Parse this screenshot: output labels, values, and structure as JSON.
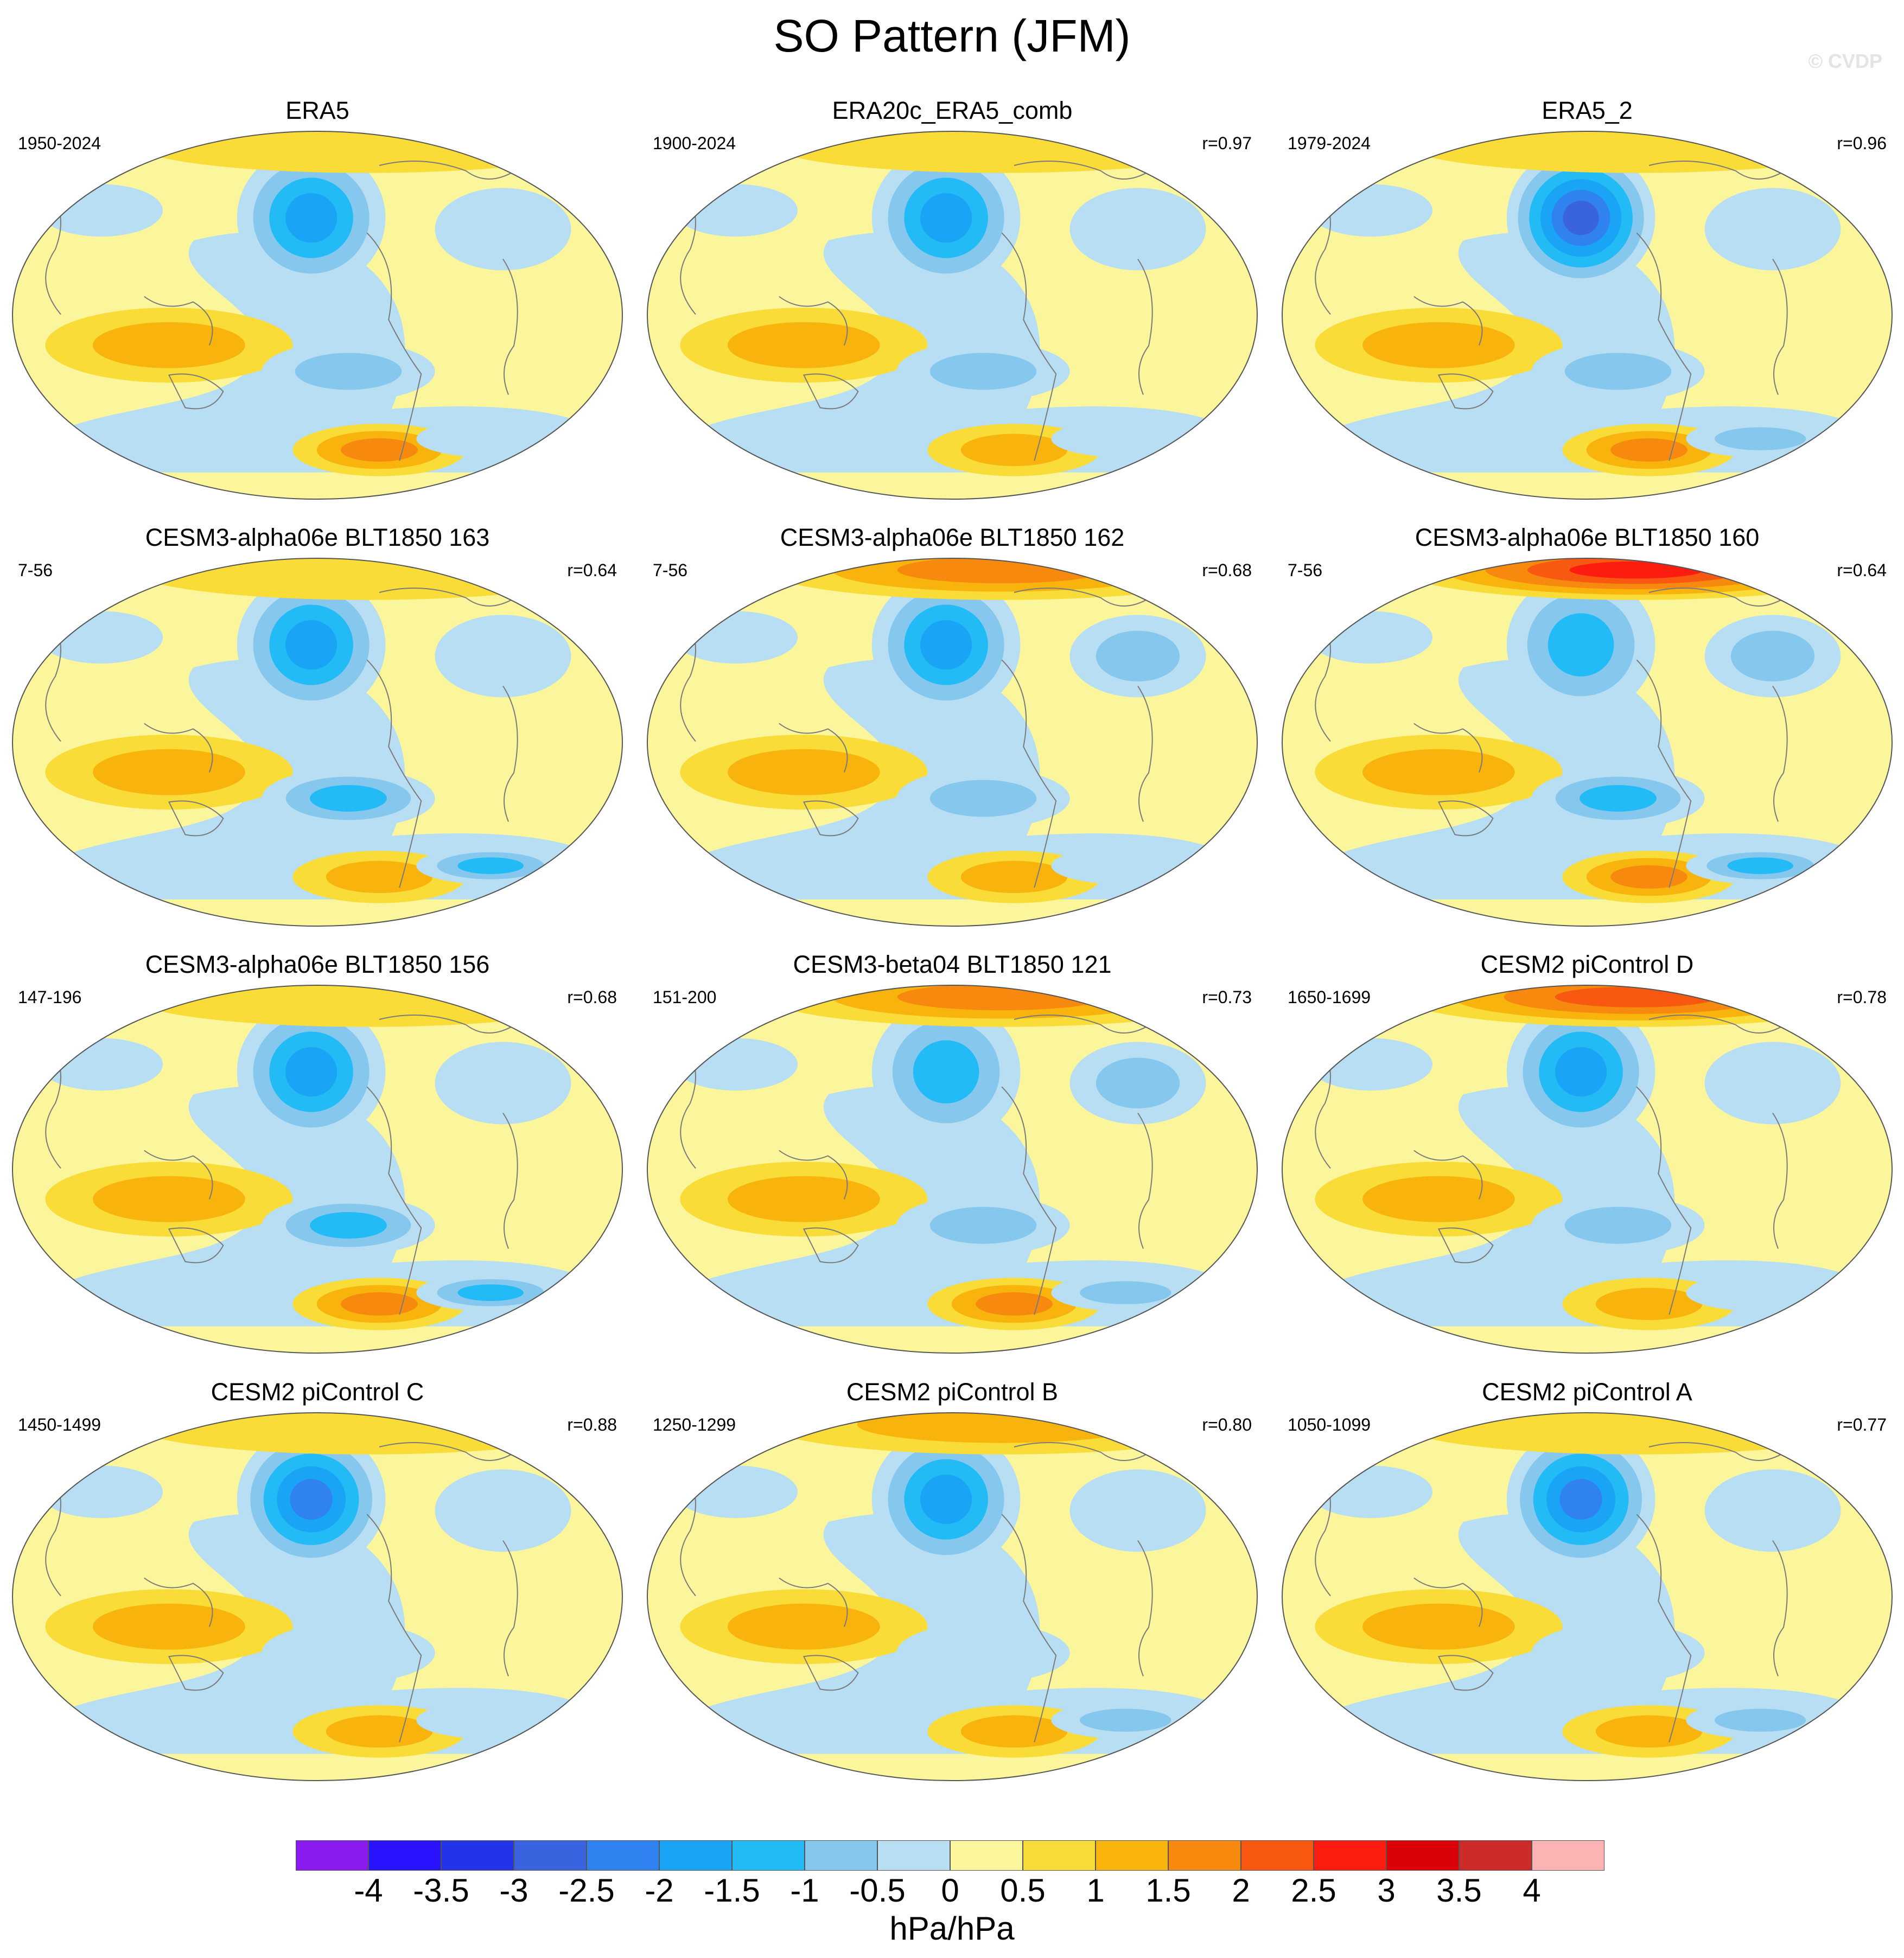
{
  "figure": {
    "title": "SO Pattern (JFM)",
    "watermark": "© CVDP"
  },
  "panels": [
    {
      "title": "ERA5",
      "years": "1950-2024",
      "corr": "",
      "pattern": {
        "aleut": -2.0,
        "arctic": 0.7,
        "atlantic": -0.8,
        "maritime": 1.0,
        "tropEP": -1.0,
        "sePac": 1.6,
        "so": -0.8,
        "na": -0.6
      }
    },
    {
      "title": "ERA20c_ERA5_comb",
      "years": "1900-2024",
      "corr": "r=0.97",
      "pattern": {
        "aleut": -2.0,
        "arctic": 0.7,
        "atlantic": -0.8,
        "maritime": 1.0,
        "tropEP": -1.0,
        "sePac": 1.4,
        "so": -0.8,
        "na": -0.6
      }
    },
    {
      "title": "ERA5_2",
      "years": "1979-2024",
      "corr": "r=0.96",
      "pattern": {
        "aleut": -3.0,
        "arctic": 0.8,
        "atlantic": -0.8,
        "maritime": 1.0,
        "tropEP": -1.0,
        "sePac": 1.8,
        "so": -1.2,
        "na": -0.6
      }
    },
    {
      "title": "CESM3-alpha06e BLT1850 163",
      "years": "7-56",
      "corr": "r=0.64",
      "pattern": {
        "aleut": -2.0,
        "arctic": 0.8,
        "atlantic": -0.6,
        "maritime": 1.0,
        "tropEP": -1.6,
        "sePac": 1.2,
        "so": -1.8,
        "na": -0.6
      }
    },
    {
      "title": "CESM3-alpha06e BLT1850 162",
      "years": "7-56",
      "corr": "r=0.68",
      "pattern": {
        "aleut": -2.0,
        "arctic": 1.8,
        "atlantic": -1.4,
        "maritime": 1.0,
        "tropEP": -1.0,
        "sePac": 1.4,
        "so": -0.8,
        "na": -0.6
      }
    },
    {
      "title": "CESM3-alpha06e BLT1850 160",
      "years": "7-56",
      "corr": "r=0.64",
      "pattern": {
        "aleut": -1.8,
        "arctic": 2.6,
        "atlantic": -1.0,
        "maritime": 1.0,
        "tropEP": -1.6,
        "sePac": 1.8,
        "so": -1.6,
        "na": -0.6
      }
    },
    {
      "title": "CESM3-alpha06e BLT1850 156",
      "years": "147-196",
      "corr": "r=0.68",
      "pattern": {
        "aleut": -2.2,
        "arctic": 0.8,
        "atlantic": -0.8,
        "maritime": 1.0,
        "tropEP": -1.6,
        "sePac": 1.8,
        "so": -1.8,
        "na": -0.6
      }
    },
    {
      "title": "CESM3-beta04 BLT1850 121",
      "years": "151-200",
      "corr": "r=0.73",
      "pattern": {
        "aleut": -1.6,
        "arctic": 1.6,
        "atlantic": -1.4,
        "maritime": 1.0,
        "tropEP": -1.0,
        "sePac": 1.8,
        "so": -1.4,
        "na": -0.6
      }
    },
    {
      "title": "CESM2 piControl D",
      "years": "1650-1699",
      "corr": "r=0.78",
      "pattern": {
        "aleut": -2.4,
        "arctic": 2.2,
        "atlantic": -0.8,
        "maritime": 1.0,
        "tropEP": -1.0,
        "sePac": 1.0,
        "so": -0.8,
        "na": -0.6
      }
    },
    {
      "title": "CESM2 piControl C",
      "years": "1450-1499",
      "corr": "r=0.88",
      "pattern": {
        "aleut": -2.8,
        "arctic": 0.8,
        "atlantic": -0.8,
        "maritime": 1.0,
        "tropEP": -0.8,
        "sePac": 1.3,
        "so": -0.8,
        "na": -0.6
      }
    },
    {
      "title": "CESM2 piControl B",
      "years": "1250-1299",
      "corr": "r=0.80",
      "pattern": {
        "aleut": -2.4,
        "arctic": 1.2,
        "atlantic": -0.8,
        "maritime": 1.0,
        "tropEP": -0.8,
        "sePac": 1.4,
        "so": -1.2,
        "na": -0.6
      }
    },
    {
      "title": "CESM2 piControl A",
      "years": "1050-1099",
      "corr": "r=0.77",
      "pattern": {
        "aleut": -2.6,
        "arctic": 0.9,
        "atlantic": -0.8,
        "maritime": 1.0,
        "tropEP": -0.8,
        "sePac": 1.0,
        "so": -1.2,
        "na": -0.6
      }
    }
  ],
  "colorbar": {
    "units": "hPa/hPa",
    "ticks": [
      "-4",
      "-3.5",
      "-3",
      "-2.5",
      "-2",
      "-1.5",
      "-1",
      "-0.5",
      "0",
      "0.5",
      "1",
      "1.5",
      "2",
      "2.5",
      "3",
      "3.5",
      "4"
    ],
    "colors": [
      "#8a1af0",
      "#2a14ff",
      "#2233e8",
      "#3a63e0",
      "#2f82f0",
      "#1aa4f5",
      "#22bbf5",
      "#86c7ee",
      "#b7def2",
      "#fbf59c",
      "#fadc38",
      "#f8b30c",
      "#f78a0e",
      "#f8580f",
      "#fc1c10",
      "#dc0008",
      "#cd2a2a",
      "#fdb2b4"
    ]
  }
}
